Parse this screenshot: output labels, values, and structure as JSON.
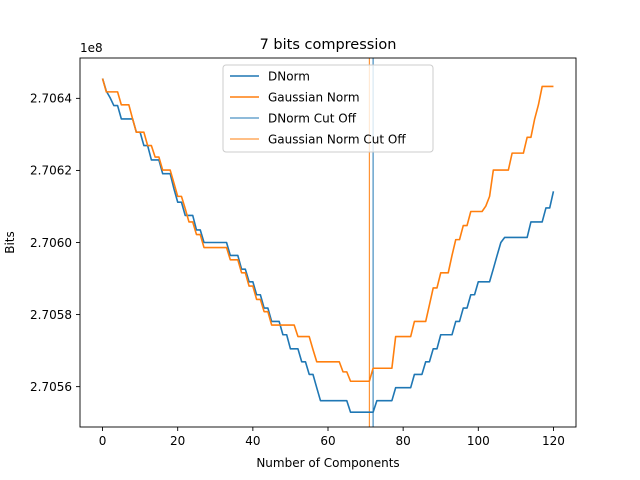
{
  "chart_data": {
    "type": "line",
    "title": "7 bits compression",
    "xlabel": "Number of Components",
    "ylabel": "Bits",
    "y_offset_label": "1e8",
    "y_scale": 100000000,
    "xlim": [
      -6,
      126
    ],
    "ylim": [
      2.705488,
      2.706512
    ],
    "xticks": [
      0,
      20,
      40,
      60,
      80,
      100,
      120
    ],
    "yticks": [
      2.7056,
      2.7058,
      2.706,
      2.7062,
      2.7064
    ],
    "ytick_labels": [
      "2.7056",
      "2.7058",
      "2.7060",
      "2.7062",
      "2.7064"
    ],
    "legend_position": "upper center",
    "grid": false,
    "series": [
      {
        "name": "DNorm",
        "color": "#1f77b4",
        "points": [
          [
            0,
            2.706455
          ],
          [
            1,
            2.70642
          ],
          [
            2,
            2.706402
          ],
          [
            3,
            2.70638
          ],
          [
            4,
            2.70638
          ],
          [
            5,
            2.706343
          ],
          [
            6,
            2.706343
          ],
          [
            7,
            2.706343
          ],
          [
            8,
            2.706343
          ],
          [
            9,
            2.706306
          ],
          [
            10,
            2.706306
          ],
          [
            11,
            2.706269
          ],
          [
            12,
            2.706269
          ],
          [
            13,
            2.706229
          ],
          [
            14,
            2.706229
          ],
          [
            15,
            2.706229
          ],
          [
            16,
            2.706191
          ],
          [
            17,
            2.706191
          ],
          [
            18,
            2.706191
          ],
          [
            19,
            2.706149
          ],
          [
            20,
            2.706112
          ],
          [
            21,
            2.706112
          ],
          [
            22,
            2.706075
          ],
          [
            23,
            2.706075
          ],
          [
            24,
            2.706075
          ],
          [
            25,
            2.706035
          ],
          [
            26,
            2.706035
          ],
          [
            27,
            2.706
          ],
          [
            28,
            2.706
          ],
          [
            29,
            2.706
          ],
          [
            30,
            2.706
          ],
          [
            31,
            2.706
          ],
          [
            32,
            2.706
          ],
          [
            33,
            2.706
          ],
          [
            34,
            2.705964
          ],
          [
            35,
            2.705964
          ],
          [
            36,
            2.705964
          ],
          [
            37,
            2.705926
          ],
          [
            38,
            2.705926
          ],
          [
            39,
            2.705891
          ],
          [
            40,
            2.705891
          ],
          [
            41,
            2.705855
          ],
          [
            42,
            2.705855
          ],
          [
            43,
            2.705818
          ],
          [
            44,
            2.705818
          ],
          [
            45,
            2.705781
          ],
          [
            46,
            2.705781
          ],
          [
            47,
            2.705781
          ],
          [
            48,
            2.705744
          ],
          [
            49,
            2.705744
          ],
          [
            50,
            2.705705
          ],
          [
            51,
            2.705705
          ],
          [
            52,
            2.705705
          ],
          [
            53,
            2.705669
          ],
          [
            54,
            2.705669
          ],
          [
            55,
            2.705634
          ],
          [
            56,
            2.705634
          ],
          [
            57,
            2.705597
          ],
          [
            58,
            2.705561
          ],
          [
            59,
            2.705561
          ],
          [
            60,
            2.705561
          ],
          [
            61,
            2.705561
          ],
          [
            62,
            2.705561
          ],
          [
            63,
            2.705561
          ],
          [
            64,
            2.705561
          ],
          [
            65,
            2.705561
          ],
          [
            66,
            2.705529
          ],
          [
            67,
            2.705529
          ],
          [
            68,
            2.705529
          ],
          [
            69,
            2.705529
          ],
          [
            70,
            2.705529
          ],
          [
            71,
            2.705529
          ],
          [
            72,
            2.705529
          ],
          [
            73,
            2.705561
          ],
          [
            74,
            2.705561
          ],
          [
            75,
            2.705561
          ],
          [
            76,
            2.705561
          ],
          [
            77,
            2.705561
          ],
          [
            78,
            2.705597
          ],
          [
            79,
            2.705597
          ],
          [
            80,
            2.705597
          ],
          [
            81,
            2.705597
          ],
          [
            82,
            2.705597
          ],
          [
            83,
            2.705634
          ],
          [
            84,
            2.705634
          ],
          [
            85,
            2.705634
          ],
          [
            86,
            2.705669
          ],
          [
            87,
            2.705669
          ],
          [
            88,
            2.705705
          ],
          [
            89,
            2.705705
          ],
          [
            90,
            2.705744
          ],
          [
            91,
            2.705744
          ],
          [
            92,
            2.705744
          ],
          [
            93,
            2.705744
          ],
          [
            94,
            2.705781
          ],
          [
            95,
            2.705781
          ],
          [
            96,
            2.705818
          ],
          [
            97,
            2.705818
          ],
          [
            98,
            2.705855
          ],
          [
            99,
            2.705855
          ],
          [
            100,
            2.705891
          ],
          [
            101,
            2.705891
          ],
          [
            102,
            2.705891
          ],
          [
            103,
            2.705891
          ],
          [
            104,
            2.705927
          ],
          [
            105,
            2.705964
          ],
          [
            106,
            2.706
          ],
          [
            107,
            2.706014
          ],
          [
            108,
            2.706014
          ],
          [
            109,
            2.706014
          ],
          [
            110,
            2.706014
          ],
          [
            111,
            2.706014
          ],
          [
            112,
            2.706014
          ],
          [
            113,
            2.706014
          ],
          [
            114,
            2.706057
          ],
          [
            115,
            2.706057
          ],
          [
            116,
            2.706057
          ],
          [
            117,
            2.706057
          ],
          [
            118,
            2.706096
          ],
          [
            119,
            2.706096
          ],
          [
            120,
            2.706142
          ]
        ]
      },
      {
        "name": "Gaussian Norm",
        "color": "#ff7f0e",
        "points": [
          [
            0,
            2.706455
          ],
          [
            1,
            2.706418
          ],
          [
            2,
            2.706418
          ],
          [
            3,
            2.706418
          ],
          [
            4,
            2.706418
          ],
          [
            5,
            2.706382
          ],
          [
            6,
            2.706382
          ],
          [
            7,
            2.706382
          ],
          [
            8,
            2.706343
          ],
          [
            9,
            2.706306
          ],
          [
            10,
            2.706306
          ],
          [
            11,
            2.706306
          ],
          [
            12,
            2.706269
          ],
          [
            13,
            2.706269
          ],
          [
            14,
            2.706237
          ],
          [
            15,
            2.706237
          ],
          [
            16,
            2.706201
          ],
          [
            17,
            2.706201
          ],
          [
            18,
            2.706201
          ],
          [
            19,
            2.706165
          ],
          [
            20,
            2.706128
          ],
          [
            21,
            2.706128
          ],
          [
            22,
            2.706094
          ],
          [
            23,
            2.706057
          ],
          [
            24,
            2.706057
          ],
          [
            25,
            2.706022
          ],
          [
            26,
            2.706022
          ],
          [
            27,
            2.705986
          ],
          [
            28,
            2.705986
          ],
          [
            29,
            2.705986
          ],
          [
            30,
            2.705986
          ],
          [
            31,
            2.705986
          ],
          [
            32,
            2.705986
          ],
          [
            33,
            2.705986
          ],
          [
            34,
            2.705952
          ],
          [
            35,
            2.705952
          ],
          [
            36,
            2.705952
          ],
          [
            37,
            2.705916
          ],
          [
            38,
            2.705916
          ],
          [
            39,
            2.705879
          ],
          [
            40,
            2.705879
          ],
          [
            41,
            2.705842
          ],
          [
            42,
            2.705842
          ],
          [
            43,
            2.705808
          ],
          [
            44,
            2.705808
          ],
          [
            45,
            2.705771
          ],
          [
            46,
            2.705771
          ],
          [
            47,
            2.705771
          ],
          [
            48,
            2.705771
          ],
          [
            49,
            2.705771
          ],
          [
            50,
            2.705771
          ],
          [
            51,
            2.705771
          ],
          [
            52,
            2.705739
          ],
          [
            53,
            2.705739
          ],
          [
            54,
            2.705739
          ],
          [
            55,
            2.705739
          ],
          [
            56,
            2.705703
          ],
          [
            57,
            2.705669
          ],
          [
            58,
            2.705669
          ],
          [
            59,
            2.705669
          ],
          [
            60,
            2.705669
          ],
          [
            61,
            2.705669
          ],
          [
            62,
            2.705669
          ],
          [
            63,
            2.705669
          ],
          [
            64,
            2.705641
          ],
          [
            65,
            2.705641
          ],
          [
            66,
            2.705615
          ],
          [
            67,
            2.705615
          ],
          [
            68,
            2.705615
          ],
          [
            69,
            2.705615
          ],
          [
            70,
            2.705615
          ],
          [
            71,
            2.705615
          ],
          [
            72,
            2.705651
          ],
          [
            73,
            2.705651
          ],
          [
            74,
            2.705651
          ],
          [
            75,
            2.705651
          ],
          [
            76,
            2.705651
          ],
          [
            77,
            2.705651
          ],
          [
            78,
            2.705739
          ],
          [
            79,
            2.705739
          ],
          [
            80,
            2.705739
          ],
          [
            81,
            2.705739
          ],
          [
            82,
            2.705739
          ],
          [
            83,
            2.705781
          ],
          [
            84,
            2.705781
          ],
          [
            85,
            2.705781
          ],
          [
            86,
            2.705781
          ],
          [
            87,
            2.705827
          ],
          [
            88,
            2.705874
          ],
          [
            89,
            2.705874
          ],
          [
            90,
            2.705916
          ],
          [
            91,
            2.705916
          ],
          [
            92,
            2.705916
          ],
          [
            93,
            2.705964
          ],
          [
            94,
            2.706008
          ],
          [
            95,
            2.706008
          ],
          [
            96,
            2.706047
          ],
          [
            97,
            2.706047
          ],
          [
            98,
            2.706086
          ],
          [
            99,
            2.706086
          ],
          [
            100,
            2.706086
          ],
          [
            101,
            2.706086
          ],
          [
            102,
            2.706101
          ],
          [
            103,
            2.706128
          ],
          [
            104,
            2.706201
          ],
          [
            105,
            2.706201
          ],
          [
            106,
            2.706201
          ],
          [
            107,
            2.706201
          ],
          [
            108,
            2.706201
          ],
          [
            109,
            2.706248
          ],
          [
            110,
            2.706248
          ],
          [
            111,
            2.706248
          ],
          [
            112,
            2.706248
          ],
          [
            113,
            2.706292
          ],
          [
            114,
            2.706292
          ],
          [
            115,
            2.706343
          ],
          [
            116,
            2.706382
          ],
          [
            117,
            2.706433
          ],
          [
            118,
            2.706433
          ],
          [
            119,
            2.706433
          ],
          [
            120,
            2.706433
          ]
        ]
      }
    ],
    "vlines": [
      {
        "name": "DNorm Cut Off",
        "x": 72,
        "color": "#1f77b4"
      },
      {
        "name": "Gaussian Norm Cut Off",
        "x": 71,
        "color": "#ff7f0e"
      }
    ]
  }
}
